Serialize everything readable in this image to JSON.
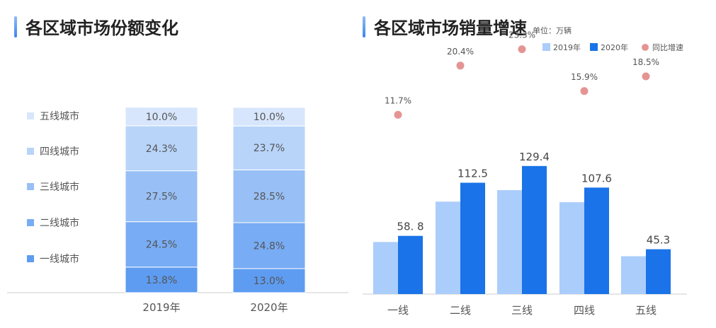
{
  "colors": {
    "tier1": "#5e9cf2",
    "tier2": "#78acf4",
    "tier3": "#98c0f6",
    "tier4": "#b8d4f9",
    "tier5": "#d7e6fc",
    "series2019": "#aacdfb",
    "series2020": "#1a73e8",
    "growth": "#e59494",
    "axis": "#cccccc",
    "text": "#555555"
  },
  "left": {
    "title": "各区域市场份额变化",
    "chart_data": {
      "type": "bar",
      "stacked": true,
      "categories": [
        "2019年",
        "2020年"
      ],
      "series": [
        {
          "name": "一线城市",
          "values": [
            13.8,
            13.0
          ],
          "labels": [
            "13.8%",
            "13.0%"
          ],
          "color_key": "tier1"
        },
        {
          "name": "二线城市",
          "values": [
            24.5,
            24.8
          ],
          "labels": [
            "24.5%",
            "24.8%"
          ],
          "color_key": "tier2"
        },
        {
          "name": "三线城市",
          "values": [
            27.5,
            28.5
          ],
          "labels": [
            "27.5%",
            "28.5%"
          ],
          "color_key": "tier3"
        },
        {
          "name": "四线城市",
          "values": [
            24.3,
            23.7
          ],
          "labels": [
            "24.3%",
            "23.7%"
          ],
          "color_key": "tier4"
        },
        {
          "name": "五线城市",
          "values": [
            10.0,
            10.0
          ],
          "labels": [
            "10.0%",
            "10.0%"
          ],
          "color_key": "tier5"
        }
      ],
      "ylim": [
        0,
        100
      ],
      "legend_position": "left"
    }
  },
  "right": {
    "title": "各区域市场销量增速",
    "unit": "单位：万辆",
    "chart_data": {
      "type": "bar",
      "categories": [
        "一线",
        "二线",
        "三线",
        "四线",
        "五线"
      ],
      "series": [
        {
          "name": "2019年",
          "values": [
            52.6,
            93.4,
            105.0,
            92.8,
            38.2
          ],
          "color_key": "series2019"
        },
        {
          "name": "2020年",
          "values": [
            58.8,
            112.5,
            129.4,
            107.6,
            45.3
          ],
          "labels": [
            "58. 8",
            "112.5",
            "129.4",
            "107.6",
            "45.3"
          ],
          "color_key": "series2020"
        },
        {
          "name": "同比增速",
          "type": "scatter",
          "values": [
            11.7,
            20.4,
            23.3,
            15.9,
            18.5
          ],
          "labels": [
            "11.7%",
            "20.4%",
            "23.3%",
            "15.9%",
            "18.5%"
          ],
          "color_key": "growth"
        }
      ],
      "ylim": [
        0,
        160
      ],
      "growth_ylim": [
        -20,
        32
      ],
      "legend_position": "top-right"
    }
  }
}
